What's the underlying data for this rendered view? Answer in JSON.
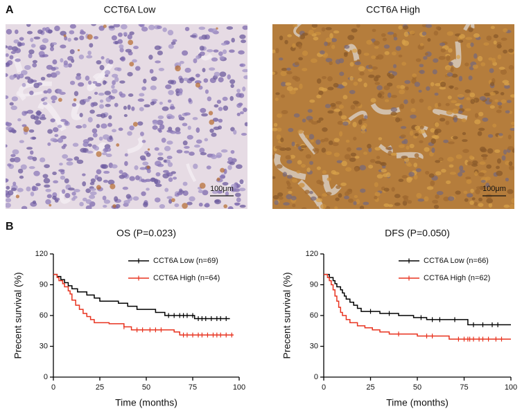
{
  "panel_labels": [
    "A",
    "B"
  ],
  "images": [
    {
      "title": "CCT6A Low",
      "scale_bar": "100μm"
    },
    {
      "title": "CCT6A High",
      "scale_bar": "100μm"
    }
  ],
  "chart_data": [
    {
      "type": "step",
      "title": "OS (P=0.023)",
      "x_label": "Time (months)",
      "y_label": "Precent survival (%)",
      "xlim": [
        0,
        100
      ],
      "ylim": [
        0,
        120
      ],
      "xticks": [
        0,
        25,
        50,
        75,
        100
      ],
      "yticks": [
        0,
        30,
        60,
        90,
        120
      ],
      "series": [
        {
          "name": "CCT6A Low (n=69)",
          "color": "#000000",
          "x": [
            0,
            2,
            4,
            6,
            8,
            10,
            13,
            18,
            22,
            25,
            35,
            40,
            45,
            55,
            60,
            76,
            95
          ],
          "values": [
            100,
            98,
            95,
            92,
            89,
            86,
            83,
            80,
            77,
            74,
            72,
            69,
            66,
            63,
            60,
            57,
            57
          ],
          "censored": [
            62,
            65,
            68,
            70,
            72,
            75,
            78,
            80,
            82,
            85,
            88,
            90,
            93
          ]
        },
        {
          "name": "CCT6A High (n=64)",
          "color": "#e8321e",
          "x": [
            0,
            2,
            3,
            5,
            6,
            8,
            9,
            10,
            12,
            14,
            16,
            18,
            20,
            22,
            30,
            38,
            42,
            65,
            68,
            97
          ],
          "values": [
            100,
            97,
            94,
            91,
            88,
            84,
            81,
            75,
            70,
            66,
            62,
            59,
            56,
            53,
            52,
            49,
            46,
            44,
            41,
            41
          ],
          "censored": [
            38,
            45,
            48,
            52,
            55,
            58,
            70,
            72,
            75,
            78,
            80,
            83,
            86,
            88,
            90,
            93,
            96
          ]
        }
      ]
    },
    {
      "type": "step",
      "title": "DFS (P=0.050)",
      "x_label": "Time (months)",
      "y_label": "Precent survival (%)",
      "xlim": [
        0,
        100
      ],
      "ylim": [
        0,
        120
      ],
      "xticks": [
        0,
        25,
        50,
        75,
        100
      ],
      "yticks": [
        0,
        30,
        60,
        90,
        120
      ],
      "series": [
        {
          "name": "CCT6A Low (n=66)",
          "color": "#000000",
          "x": [
            0,
            3,
            5,
            6,
            7,
            9,
            10,
            11,
            12,
            14,
            16,
            18,
            20,
            30,
            40,
            48,
            55,
            77,
            100
          ],
          "values": [
            100,
            97,
            94,
            91,
            88,
            85,
            82,
            79,
            76,
            73,
            70,
            67,
            64,
            62,
            60,
            58,
            56,
            51,
            51
          ],
          "censored": [
            25,
            35,
            52,
            58,
            62,
            70,
            80,
            85,
            90,
            93
          ]
        },
        {
          "name": "CCT6A High (n=62)",
          "color": "#e8321e",
          "x": [
            0,
            2,
            3,
            4,
            5,
            6,
            7,
            8,
            9,
            10,
            12,
            14,
            18,
            22,
            26,
            30,
            35,
            50,
            67,
            100
          ],
          "values": [
            100,
            97,
            94,
            90,
            85,
            79,
            74,
            68,
            63,
            60,
            56,
            53,
            50,
            48,
            46,
            44,
            42,
            40,
            37,
            37
          ],
          "censored": [
            40,
            55,
            58,
            72,
            75,
            77,
            78,
            80,
            83,
            85,
            88,
            92,
            95
          ]
        }
      ]
    }
  ]
}
